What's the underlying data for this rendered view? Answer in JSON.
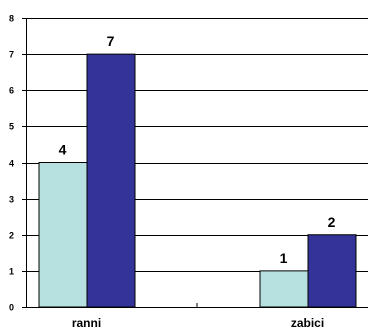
{
  "chart_data": {
    "type": "bar",
    "categories": [
      "ranni",
      "zabici"
    ],
    "series": [
      {
        "values": [
          4,
          1
        ]
      },
      {
        "values": [
          7,
          2
        ]
      }
    ],
    "ylim": [
      0,
      8
    ],
    "yticks": [
      "0",
      "1",
      "2",
      "3",
      "4",
      "5",
      "6",
      "7",
      "8"
    ],
    "grid": true,
    "legend": "none",
    "colors": [
      "#b7e0e0",
      "#333399"
    ],
    "bar_outline": "#000000",
    "grid_color": "#000000"
  }
}
